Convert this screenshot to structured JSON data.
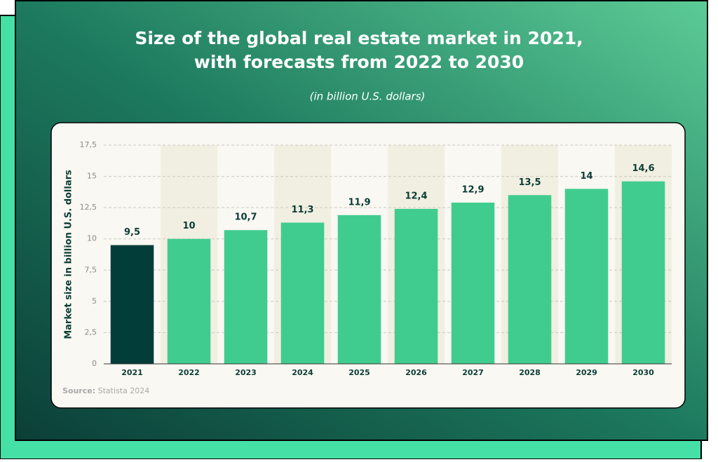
{
  "chart_data": {
    "type": "bar",
    "title": [
      "Size of the global real estate market in 2021,",
      "with forecasts from 2022 to 2030"
    ],
    "subtitle": "(in billion U.S. dollars)",
    "y_label": "Market size in billion U.S. dollars",
    "source_label": "Source:",
    "source": "Statista 2024",
    "categories": [
      "2021",
      "2022",
      "2023",
      "2024",
      "2025",
      "2026",
      "2027",
      "2028",
      "2029",
      "2030"
    ],
    "values": [
      9.5,
      10,
      10.7,
      11.3,
      11.9,
      12.4,
      12.9,
      13.5,
      14,
      14.6
    ],
    "value_labels": [
      "9,5",
      "10",
      "10,7",
      "11,3",
      "11,9",
      "12,4",
      "12,9",
      "13,5",
      "14",
      "14,6"
    ],
    "colors": [
      "#033d3a",
      "#40cc8f",
      "#40cc8f",
      "#40cc8f",
      "#40cc8f",
      "#40cc8f",
      "#40cc8f",
      "#40cc8f",
      "#40cc8f",
      "#40cc8f"
    ],
    "ylim": [
      0,
      17.5
    ],
    "yticks": [
      0,
      {
        "value": 2.5,
        "label": "2,5"
      },
      5,
      {
        "value": 7.5,
        "label": "7,5"
      },
      10,
      {
        "value": 12.5,
        "label": "12,5"
      },
      15,
      {
        "value": 17.5,
        "label": "17,5"
      }
    ],
    "grid": true
  }
}
